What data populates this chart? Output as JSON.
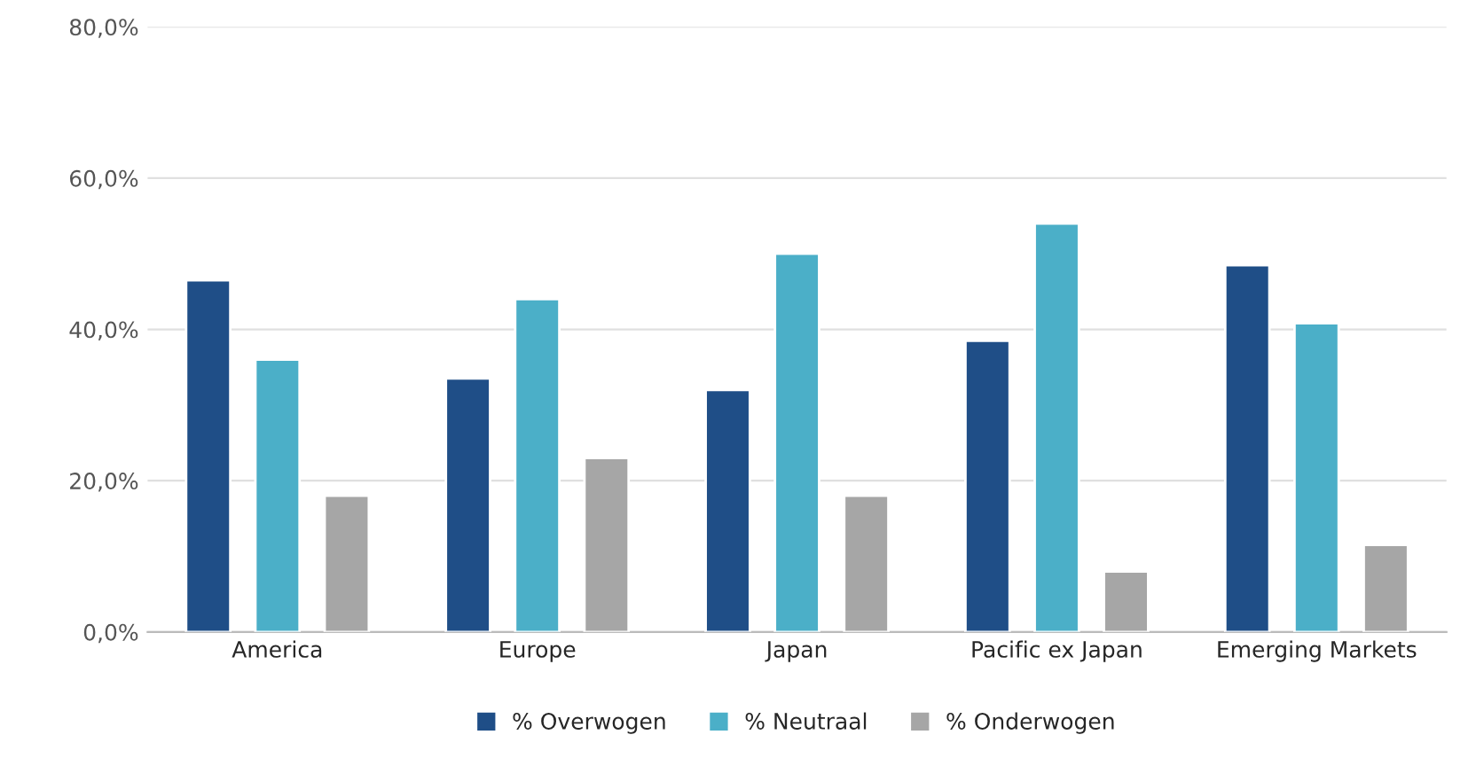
{
  "chart_data": {
    "type": "bar",
    "categories": [
      "America",
      "Europe",
      "Japan",
      "Pacific ex Japan",
      "Emerging Markets"
    ],
    "series": [
      {
        "name": "% Overwogen",
        "color": "#1f4e87",
        "values": [
          46.5,
          33.5,
          32.0,
          38.5,
          48.5
        ]
      },
      {
        "name": "% Neutraal",
        "color": "#4bafc8",
        "values": [
          36.0,
          44.0,
          50.0,
          54.0,
          40.8
        ]
      },
      {
        "name": "% Onderwogen",
        "color": "#a6a6a6",
        "values": [
          18.0,
          23.0,
          18.0,
          8.0,
          11.5
        ]
      }
    ],
    "ylim": [
      0,
      80
    ],
    "yticks": [
      {
        "value": 0,
        "label": "0,0%"
      },
      {
        "value": 20,
        "label": "20,0%"
      },
      {
        "value": 40,
        "label": "40,0%"
      },
      {
        "value": 60,
        "label": "60,0%"
      },
      {
        "value": 80,
        "label": "80,0%"
      }
    ],
    "grid": "y",
    "legend": "bottom"
  }
}
